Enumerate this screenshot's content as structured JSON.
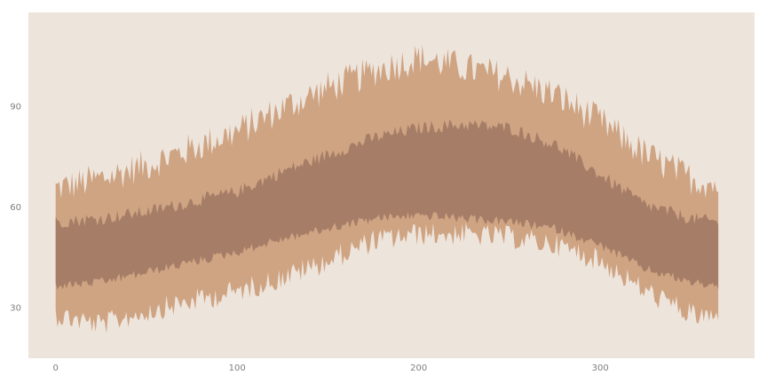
{
  "chart_data": {
    "type": "area",
    "title": "",
    "xlabel": "",
    "ylabel": "",
    "xlim": [
      -15,
      385
    ],
    "ylim": [
      15,
      118
    ],
    "grid": false,
    "x_ticks": [
      0,
      100,
      200,
      300
    ],
    "y_ticks": [
      30,
      60,
      90
    ],
    "x": [
      0,
      25,
      50,
      75,
      100,
      125,
      150,
      175,
      200,
      225,
      250,
      275,
      300,
      325,
      350,
      365
    ],
    "series": [
      {
        "role": "outer",
        "low": [
          29,
          26,
          30,
          33,
          36,
          40,
          45,
          51,
          53,
          53,
          52,
          50,
          45,
          36,
          29,
          28
        ],
        "high": [
          64,
          67,
          71,
          76,
          81,
          88,
          94,
          99,
          103,
          100,
          97,
          92,
          84,
          74,
          67,
          65
        ]
      },
      {
        "role": "inner",
        "low": [
          37,
          38,
          41,
          44,
          47,
          51,
          54,
          57,
          58,
          57,
          56,
          54,
          49,
          42,
          38,
          37
        ],
        "high": [
          55,
          56,
          58,
          61,
          64,
          70,
          75,
          80,
          83,
          84,
          83,
          78,
          69,
          60,
          56,
          55
        ]
      }
    ],
    "colors": {
      "background": "#ede4dc",
      "outer": "#cfa483",
      "inner": "#a67d66"
    }
  }
}
